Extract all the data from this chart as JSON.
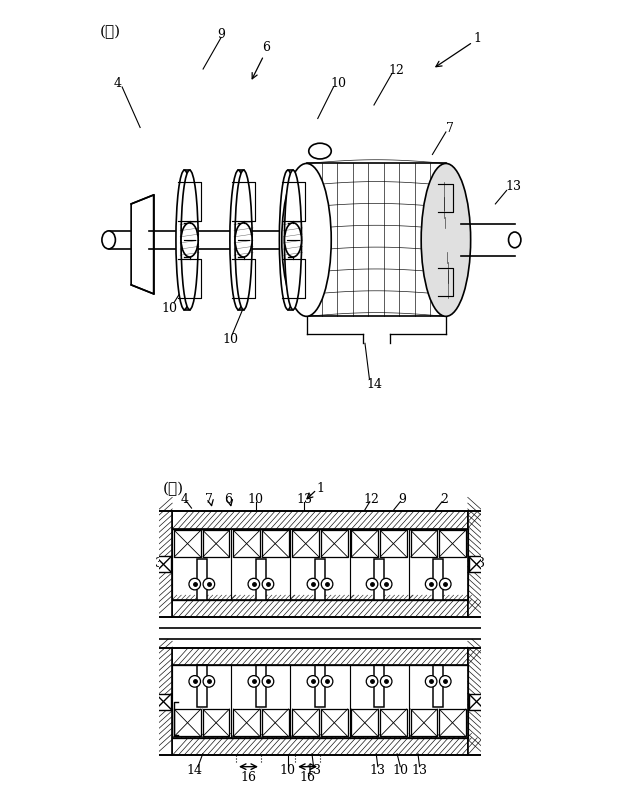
{
  "bg_color": "#ffffff",
  "line_color": "#000000",
  "fig_width": 6.4,
  "fig_height": 8.03,
  "label_a": "(ア)",
  "label_i": "(イ)"
}
